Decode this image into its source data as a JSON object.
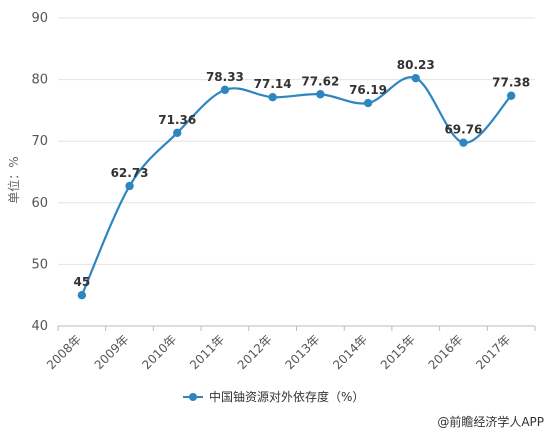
{
  "chart_data": {
    "type": "line",
    "title": "",
    "xlabel": "",
    "ylabel": "单位：%",
    "categories": [
      "2008年",
      "2009年",
      "2010年",
      "2011年",
      "2012年",
      "2013年",
      "2014年",
      "2015年",
      "2016年",
      "2017年"
    ],
    "series": [
      {
        "name": "中国铀资源对外依存度（%）",
        "values": [
          45,
          62.73,
          71.36,
          78.33,
          77.14,
          77.62,
          76.19,
          80.23,
          69.76,
          77.38
        ],
        "labels": [
          "45",
          "62.73",
          "71.36",
          "78.33",
          "77.14",
          "77.62",
          "76.19",
          "80.23",
          "69.76",
          "77.38"
        ]
      }
    ],
    "ylim": [
      40,
      90
    ],
    "yticks": [
      "40",
      "50",
      "60",
      "70",
      "80",
      "90"
    ],
    "grid": true,
    "legend_position": "bottom",
    "line_color": "#2E86C1"
  },
  "credit": "@前瞻经济学人APP"
}
